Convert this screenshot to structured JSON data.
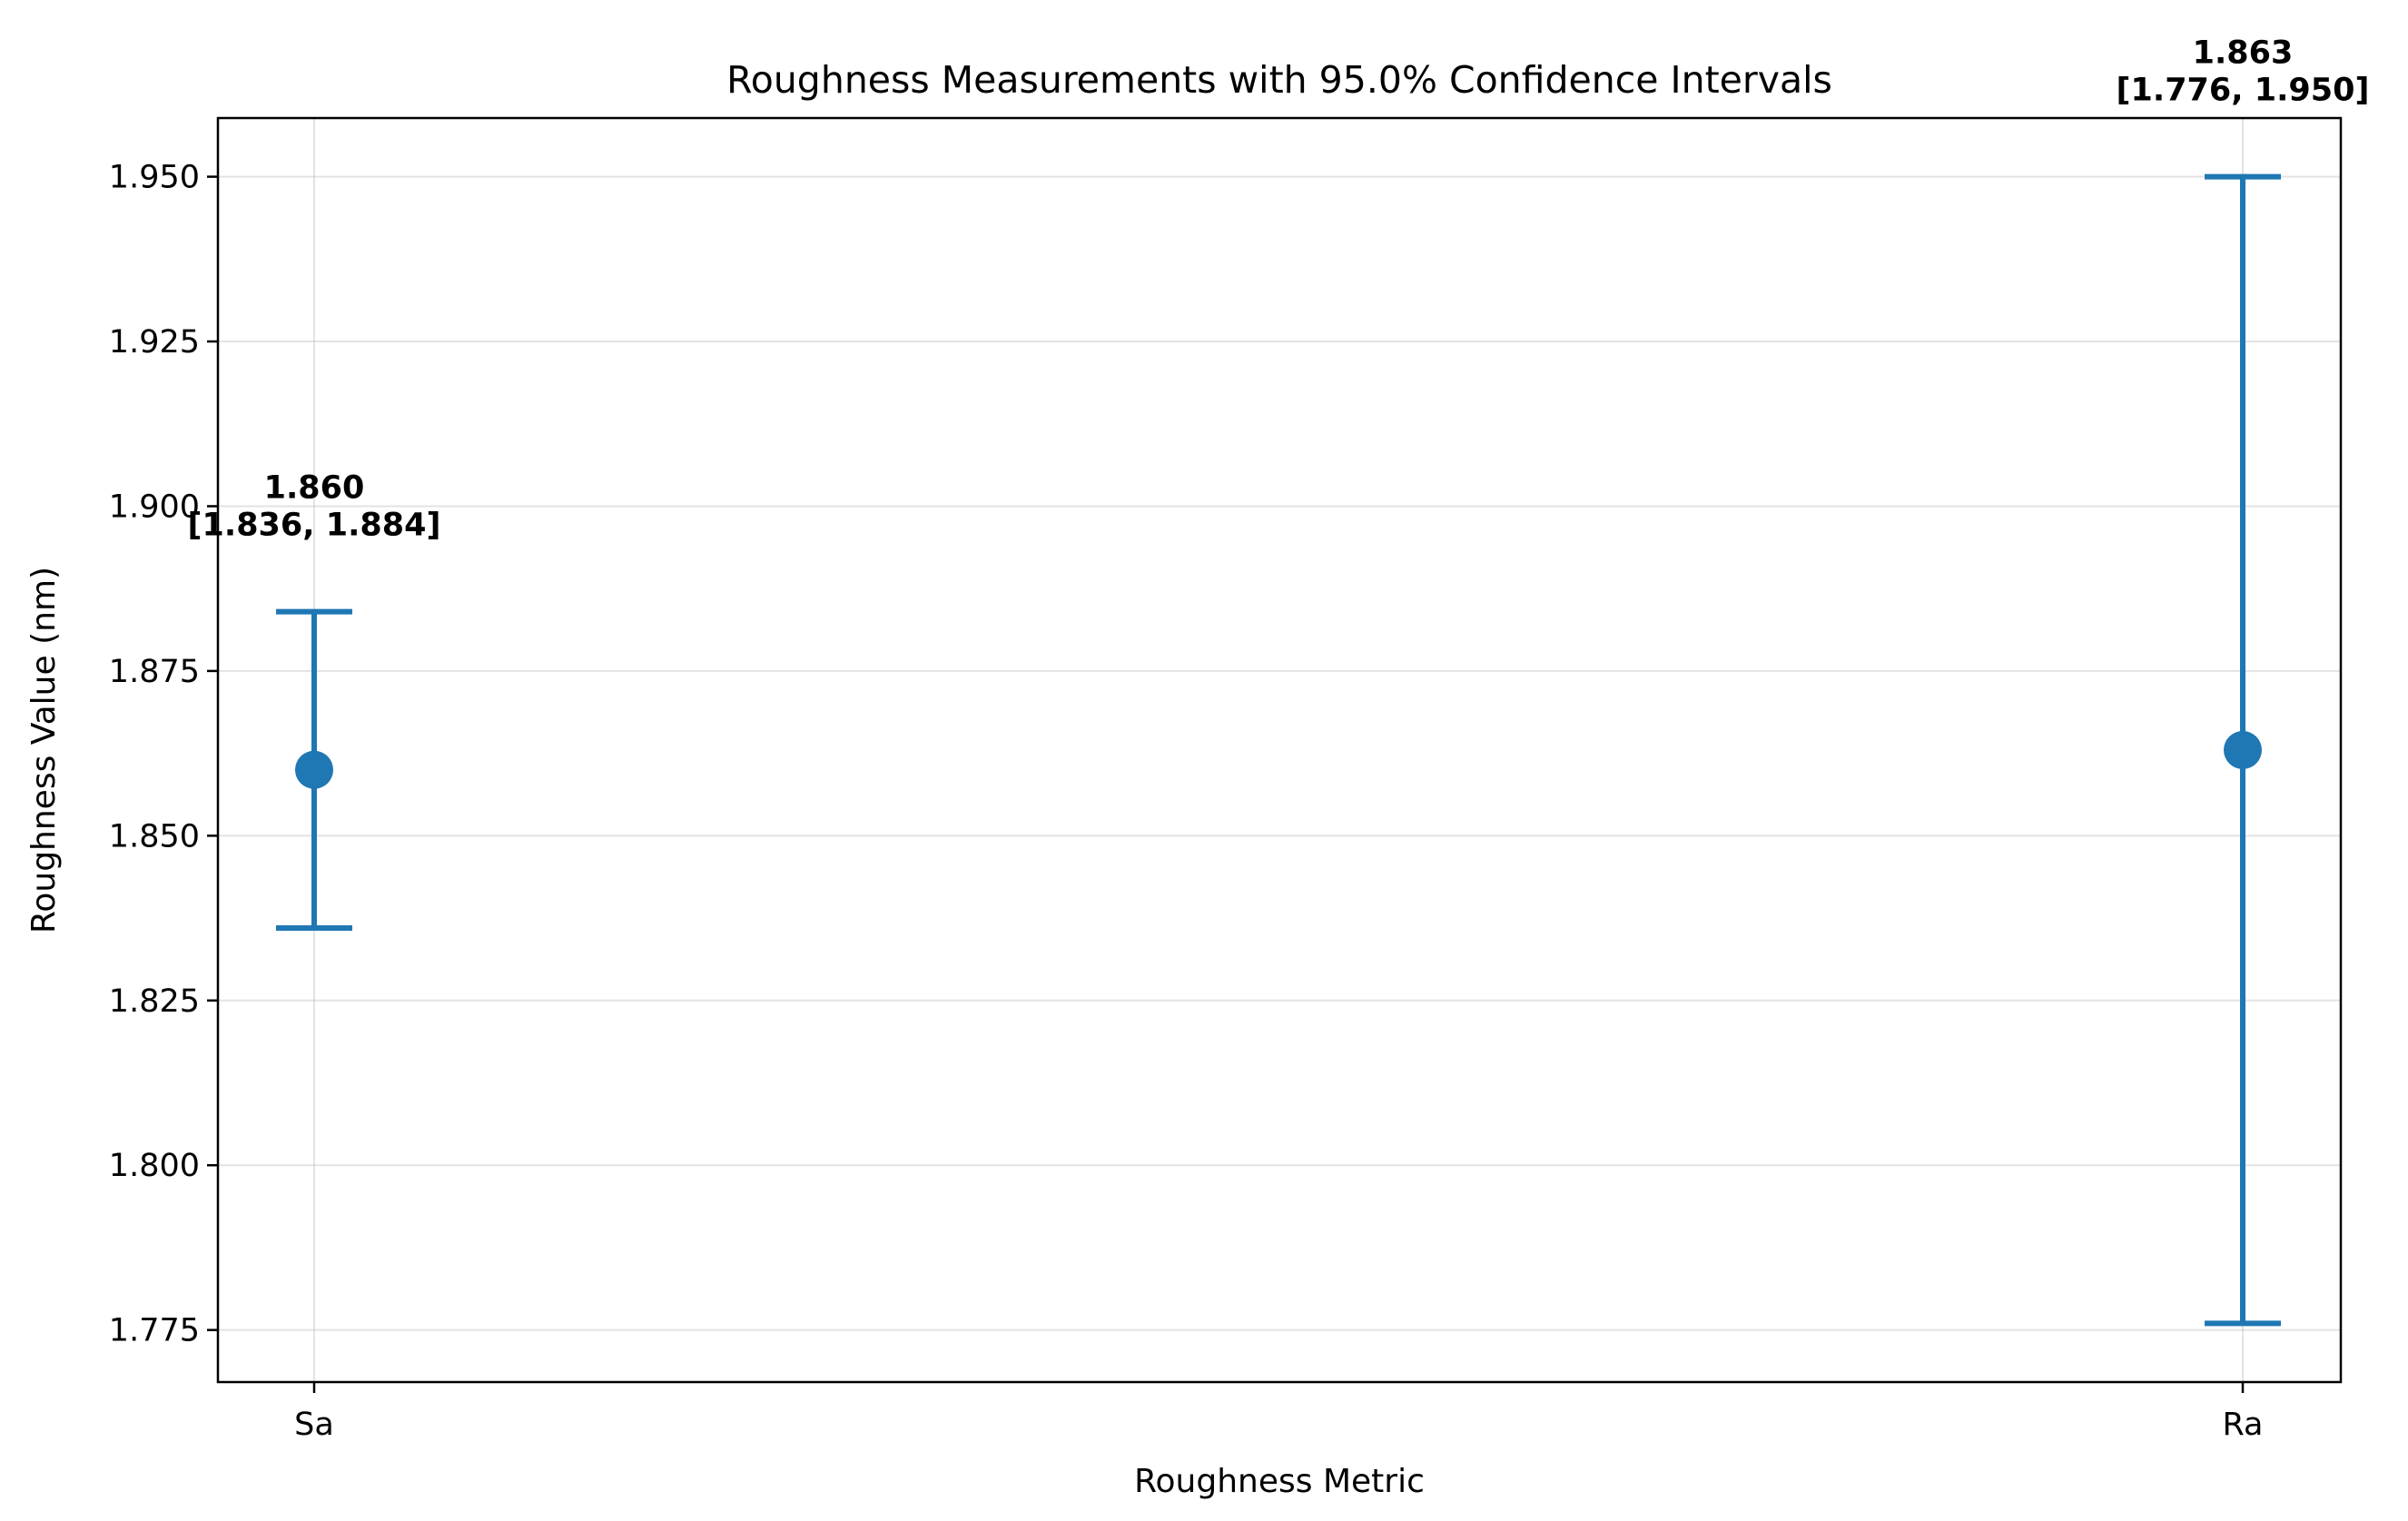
{
  "chart_data": {
    "type": "errorbar",
    "title": "Roughness Measurements with 95.0% Confidence Intervals",
    "xlabel": "Roughness Metric",
    "ylabel": "Roughness Value (nm)",
    "categories": [
      "Sa",
      "Ra"
    ],
    "points": [
      {
        "category": "Sa",
        "mean": 1.86,
        "lower": 1.836,
        "upper": 1.884,
        "label_value": "1.860",
        "label_interval": "[1.836, 1.884]"
      },
      {
        "category": "Ra",
        "mean": 1.863,
        "lower": 1.776,
        "upper": 1.95,
        "label_value": "1.863",
        "label_interval": "[1.776, 1.950]"
      }
    ],
    "ylim": [
      1.7671,
      1.9589
    ],
    "yticks": [
      1.775,
      1.8,
      1.825,
      1.85,
      1.875,
      1.9,
      1.925,
      1.95
    ],
    "ytick_labels": [
      "1.775",
      "1.800",
      "1.825",
      "1.850",
      "1.875",
      "1.900",
      "1.925",
      "1.950"
    ],
    "grid": true,
    "series_color": "#1f77b4"
  }
}
